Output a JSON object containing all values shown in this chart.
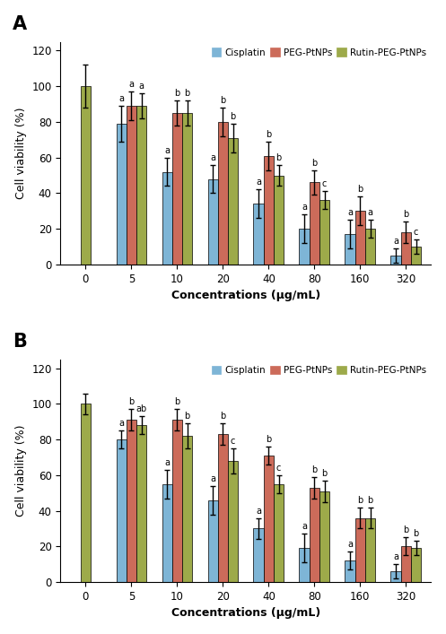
{
  "panel_A": {
    "title": "A",
    "concentrations": [
      0,
      5,
      10,
      20,
      40,
      80,
      160,
      320
    ],
    "cisplatin_means": [
      null,
      79,
      52,
      48,
      34,
      20,
      17,
      5
    ],
    "peg_means": [
      null,
      89,
      85,
      80,
      61,
      46,
      30,
      18
    ],
    "rutin_means": [
      100,
      89,
      85,
      71,
      50,
      36,
      20,
      10
    ],
    "cisplatin_errors": [
      null,
      10,
      8,
      8,
      8,
      8,
      8,
      4
    ],
    "peg_errors": [
      null,
      8,
      7,
      8,
      8,
      7,
      8,
      6
    ],
    "rutin_errors": [
      12,
      7,
      7,
      8,
      6,
      5,
      5,
      4
    ],
    "letters_cisplatin": [
      "",
      "a",
      "a",
      "a",
      "a",
      "a",
      "a",
      "a"
    ],
    "letters_peg": [
      "",
      "a",
      "b",
      "b",
      "b",
      "b",
      "b",
      "b"
    ],
    "letters_rutin": [
      "",
      "a",
      "b",
      "b",
      "b",
      "c",
      "a",
      "c"
    ],
    "ylabel": "Cell viability (%)",
    "xlabel": "Concentrations (μg/mL)",
    "ylim": [
      0,
      125
    ],
    "yticks": [
      0,
      20,
      40,
      60,
      80,
      100,
      120
    ]
  },
  "panel_B": {
    "title": "B",
    "concentrations": [
      0,
      5,
      10,
      20,
      40,
      80,
      160,
      320
    ],
    "cisplatin_means": [
      null,
      80,
      55,
      46,
      30,
      19,
      12,
      6
    ],
    "peg_means": [
      null,
      91,
      91,
      83,
      71,
      53,
      36,
      20
    ],
    "rutin_means": [
      100,
      88,
      82,
      68,
      55,
      51,
      36,
      19
    ],
    "cisplatin_errors": [
      null,
      5,
      8,
      8,
      6,
      8,
      5,
      4
    ],
    "peg_errors": [
      null,
      6,
      6,
      6,
      5,
      6,
      6,
      5
    ],
    "rutin_errors": [
      6,
      5,
      7,
      7,
      5,
      6,
      6,
      4
    ],
    "letters_cisplatin": [
      "",
      "a",
      "a",
      "a",
      "a",
      "a",
      "a",
      "a"
    ],
    "letters_peg": [
      "",
      "b",
      "b",
      "b",
      "b",
      "b",
      "b",
      "b"
    ],
    "letters_rutin": [
      "",
      "ab",
      "b",
      "c",
      "c",
      "b",
      "b",
      "b"
    ],
    "ylabel": "Cell viability (%)",
    "xlabel": "Concentrations (μg/mL)",
    "ylim": [
      0,
      125
    ],
    "yticks": [
      0,
      20,
      40,
      60,
      80,
      100,
      120
    ]
  },
  "colors": {
    "cisplatin": "#7EB5D6",
    "peg": "#CC6B5A",
    "rutin": "#9DAA4A"
  },
  "legend_labels": [
    "Cisplatin",
    "PEG-PtNPs",
    "Rutin-PEG-PtNPs"
  ],
  "bar_width": 0.22,
  "background_color": "#ffffff"
}
